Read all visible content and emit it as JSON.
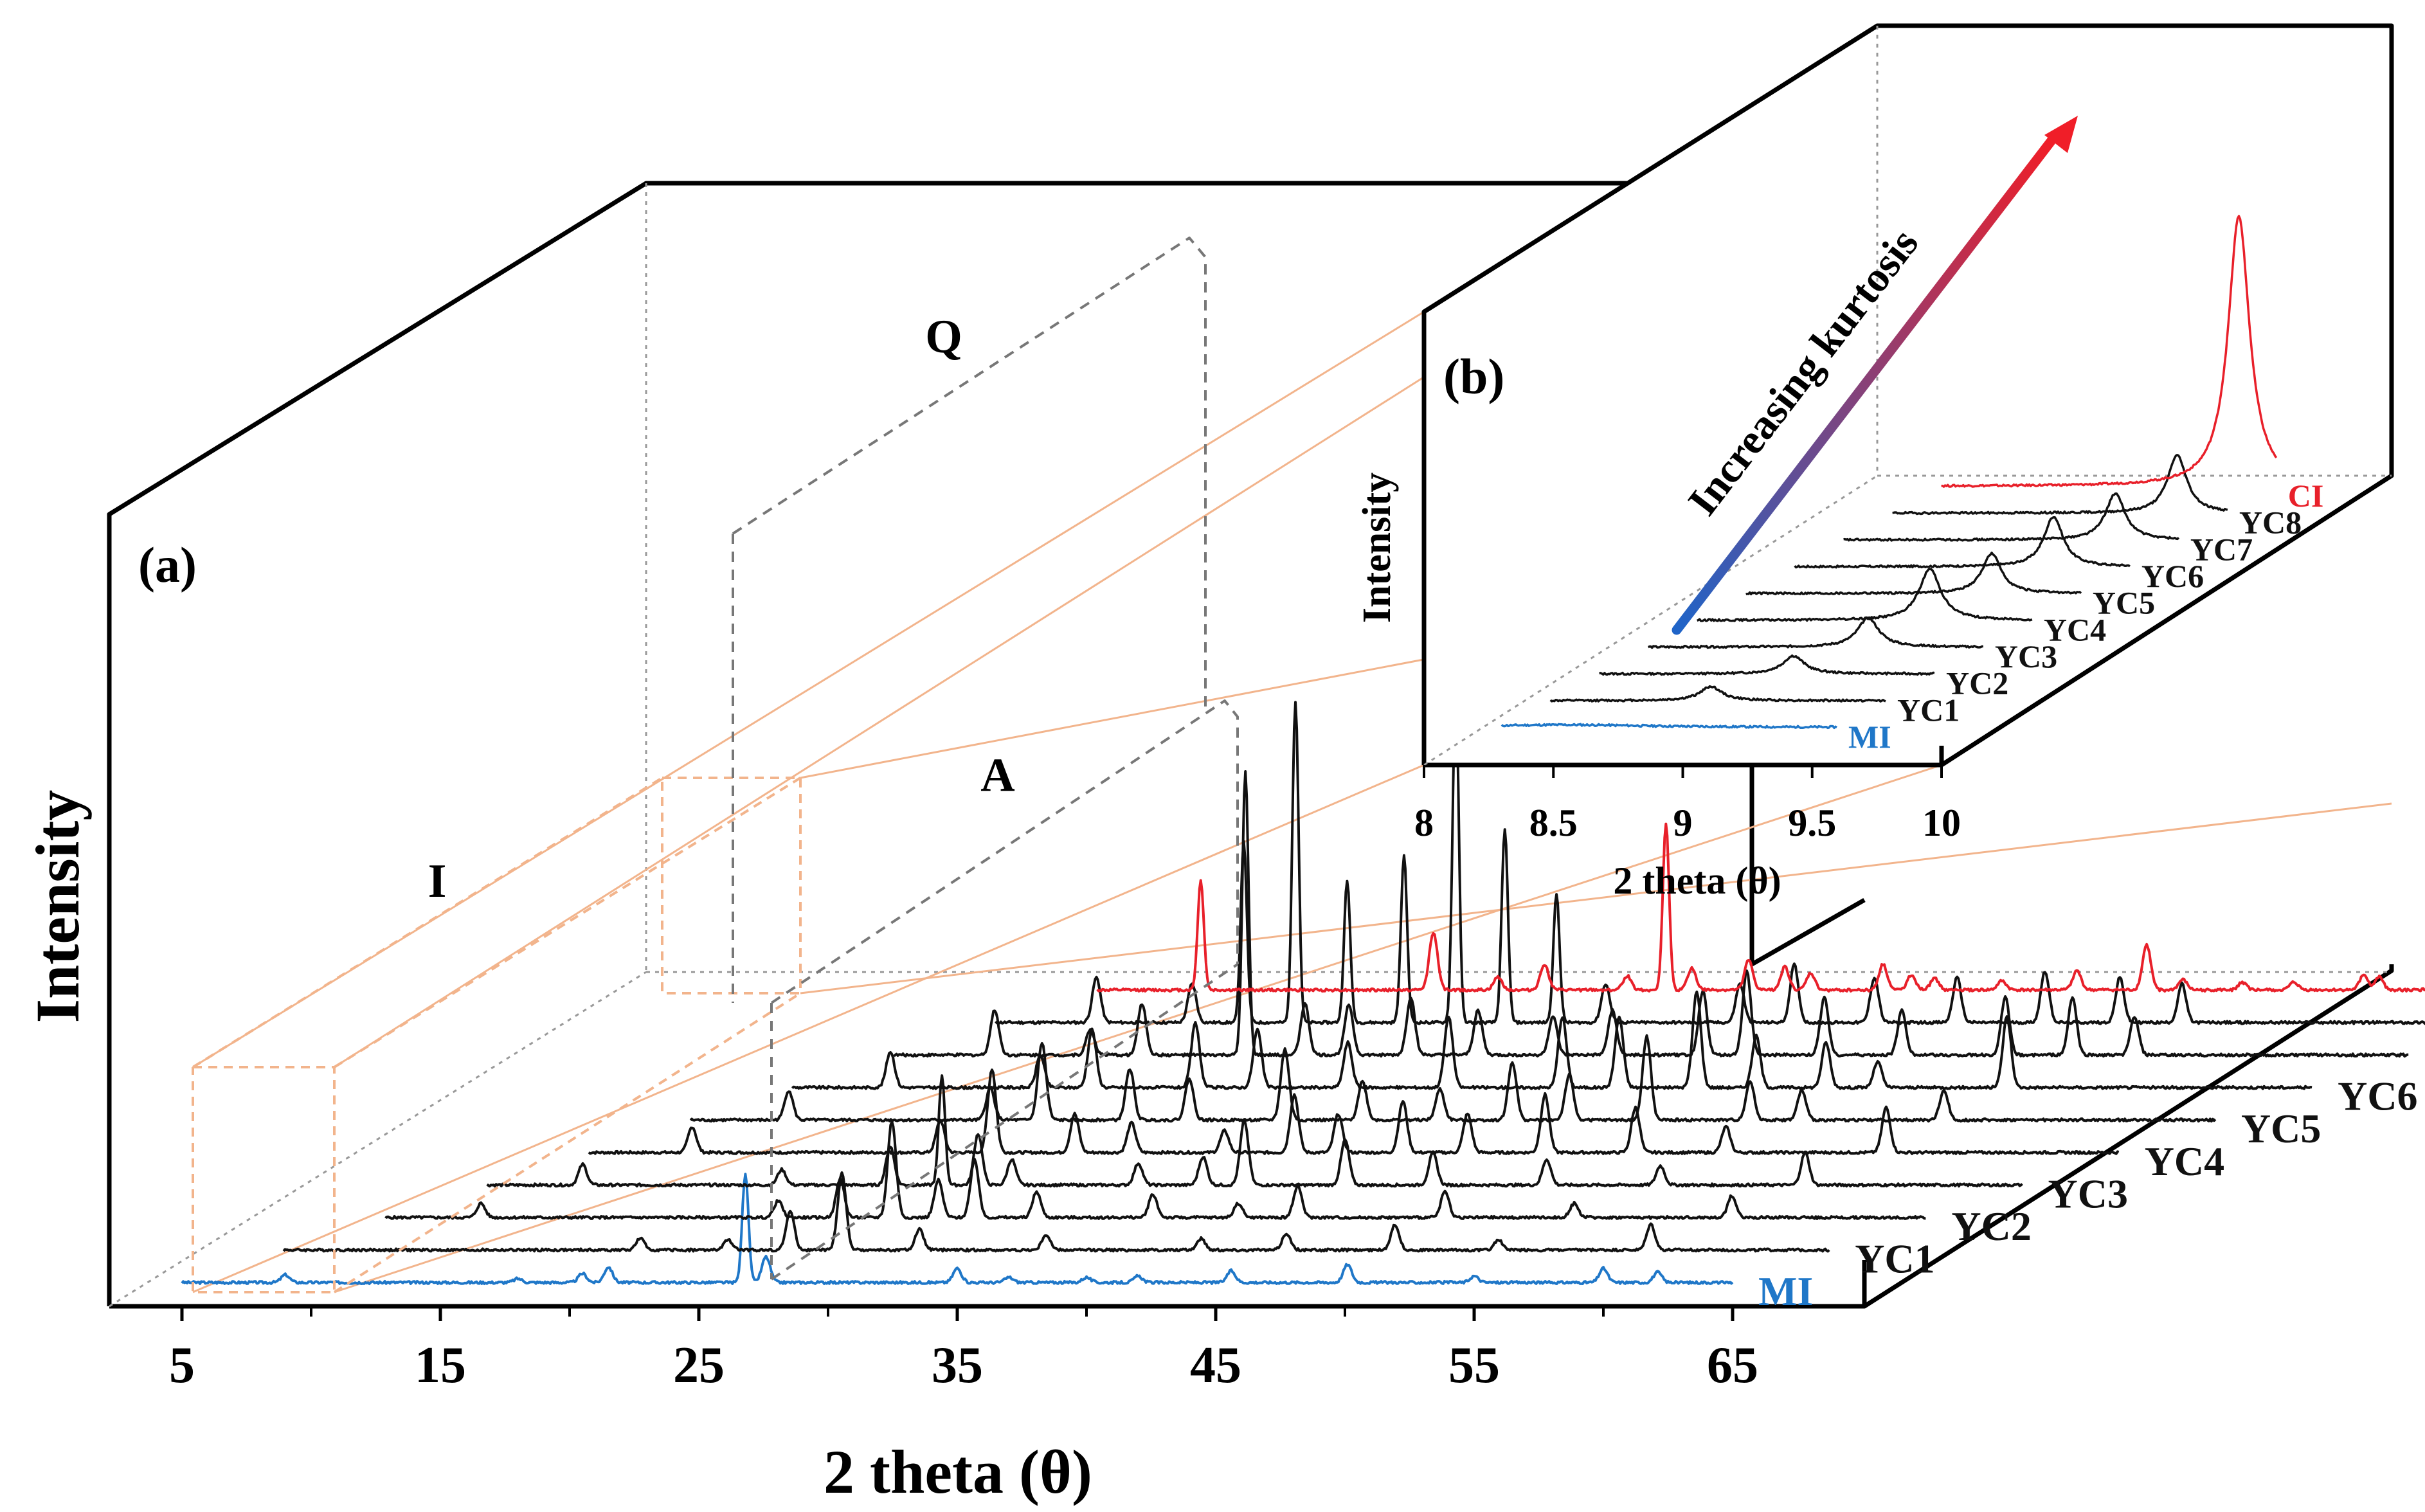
{
  "colors": {
    "red": "#e8202a",
    "blue": "#1f77c8",
    "black": "#111111",
    "guide": "#f2b48c",
    "dash": "#777777",
    "frame": "#000000"
  },
  "chart_data": [
    {
      "panel": "(a)",
      "type": "line",
      "xlabel": "2 theta (θ)",
      "ylabel": "Intensity",
      "xlim": [
        5,
        65
      ],
      "xticks": [
        "5",
        "15",
        "25",
        "35",
        "45",
        "55",
        "65"
      ],
      "region_labels": [
        "I",
        "Q",
        "A"
      ],
      "series": [
        {
          "name": "MI",
          "color": "#1f77c8",
          "peaks": [
            [
              9.0,
              12
            ],
            [
              18.0,
              6
            ],
            [
              20.5,
              14
            ],
            [
              21.5,
              24
            ],
            [
              26.8,
              170
            ],
            [
              27.6,
              40
            ],
            [
              35.0,
              22
            ],
            [
              37.0,
              8
            ],
            [
              40.0,
              8
            ],
            [
              42.0,
              10
            ],
            [
              45.6,
              18
            ],
            [
              50.1,
              28
            ],
            [
              55.0,
              10
            ],
            [
              60.0,
              22
            ],
            [
              62.1,
              16
            ]
          ]
        },
        {
          "name": "YC1",
          "color": "#111111",
          "peaks": [
            [
              20.8,
              18
            ],
            [
              24.2,
              16
            ],
            [
              26.6,
              60
            ],
            [
              28.6,
              120
            ],
            [
              31.6,
              32
            ],
            [
              36.5,
              24
            ],
            [
              42.5,
              18
            ],
            [
              45.8,
              26
            ],
            [
              50.0,
              40
            ],
            [
              54.0,
              16
            ],
            [
              59.9,
              40
            ],
            [
              68.0,
              18
            ]
          ]
        },
        {
          "name": "YC2",
          "color": "#111111",
          "peaks": [
            [
              12.7,
              22
            ],
            [
              24.2,
              26
            ],
            [
              26.6,
              60
            ],
            [
              28.6,
              150
            ],
            [
              30.4,
              58
            ],
            [
              31.8,
              90
            ],
            [
              34.2,
              40
            ],
            [
              38.7,
              36
            ],
            [
              42.0,
              22
            ],
            [
              44.3,
              50
            ],
            [
              50.0,
              40
            ],
            [
              55.0,
              22
            ],
            [
              61.1,
              34
            ]
          ]
        },
        {
          "name": "YC3",
          "color": "#111111",
          "peaks": [
            [
              14.7,
              32
            ],
            [
              22.4,
              24
            ],
            [
              26.6,
              60
            ],
            [
              28.6,
              170
            ],
            [
              30.0,
              80
            ],
            [
              31.3,
              40
            ],
            [
              36.2,
              34
            ],
            [
              38.7,
              44
            ],
            [
              40.3,
              100
            ],
            [
              44.2,
              70
            ],
            [
              47.6,
              50
            ],
            [
              52.0,
              40
            ],
            [
              56.4,
              30
            ],
            [
              62.0,
              50
            ]
          ]
        },
        {
          "name": "YC4",
          "color": "#111111",
          "peaks": [
            [
              17.0,
              40
            ],
            [
              26.6,
              50
            ],
            [
              28.6,
              130
            ],
            [
              31.8,
              60
            ],
            [
              34.0,
              46
            ],
            [
              37.6,
              34
            ],
            [
              40.3,
              90
            ],
            [
              42.0,
              60
            ],
            [
              44.5,
              80
            ],
            [
              47.0,
              60
            ],
            [
              50.0,
              90
            ],
            [
              53.5,
              70
            ],
            [
              57.0,
              40
            ],
            [
              63.2,
              70
            ]
          ]
        },
        {
          "name": "YC5",
          "color": "#111111",
          "peaks": [
            [
              18.8,
              46
            ],
            [
              26.6,
              50
            ],
            [
              28.6,
              120
            ],
            [
              32.0,
              80
            ],
            [
              34.3,
              64
            ],
            [
              38.0,
              110
            ],
            [
              41.0,
              60
            ],
            [
              44.0,
              48
            ],
            [
              46.8,
              90
            ],
            [
              49.0,
              70
            ],
            [
              52.0,
              130
            ],
            [
              56.0,
              60
            ],
            [
              58.0,
              46
            ],
            [
              63.5,
              46
            ]
          ]
        },
        {
          "name": "YC6",
          "color": "#111111",
          "peaks": [
            [
              20.8,
              56
            ],
            [
              26.6,
              50
            ],
            [
              28.6,
              90
            ],
            [
              32.6,
              100
            ],
            [
              35.0,
              90
            ],
            [
              38.5,
              70
            ],
            [
              42.4,
              110
            ],
            [
              46.8,
              110
            ],
            [
              49.0,
              110
            ],
            [
              52.0,
              150
            ],
            [
              54.3,
              80
            ],
            [
              57.0,
              70
            ],
            [
              59.0,
              40
            ],
            [
              64.0,
              110
            ]
          ]
        },
        {
          "name": "YC7",
          "color": "#111111",
          "peaks": [
            [
              22.9,
              70
            ],
            [
              26.6,
              40
            ],
            [
              28.6,
              80
            ],
            [
              32.6,
              440
            ],
            [
              34.9,
              80
            ],
            [
              36.6,
              80
            ],
            [
              39.0,
              90
            ],
            [
              41.6,
              70
            ],
            [
              44.5,
              60
            ],
            [
              46.8,
              70
            ],
            [
              50.3,
              100
            ],
            [
              52.0,
              130
            ],
            [
              55.0,
              90
            ],
            [
              58.0,
              70
            ],
            [
              62.0,
              90
            ],
            [
              64.6,
              90
            ],
            [
              67.0,
              60
            ]
          ]
        },
        {
          "name": "YC8",
          "color": "#111111",
          "peaks": [
            [
              24.9,
              70
            ],
            [
              28.6,
              60
            ],
            [
              30.6,
              280
            ],
            [
              32.6,
              500
            ],
            [
              34.6,
              220
            ],
            [
              36.8,
              260
            ],
            [
              38.8,
              520
            ],
            [
              40.7,
              300
            ],
            [
              42.7,
              200
            ],
            [
              44.6,
              60
            ],
            [
              49.8,
              60
            ],
            [
              51.9,
              90
            ],
            [
              55.0,
              70
            ],
            [
              58.2,
              70
            ],
            [
              61.6,
              80
            ],
            [
              64.5,
              70
            ],
            [
              66.9,
              60
            ]
          ]
        },
        {
          "name": "CI",
          "color": "#e8202a",
          "peaks": [
            [
              27.0,
              170
            ],
            [
              36.0,
              90
            ],
            [
              38.5,
              20
            ],
            [
              40.3,
              40
            ],
            [
              43.5,
              22
            ],
            [
              45.0,
              260
            ],
            [
              46.0,
              34
            ],
            [
              48.2,
              46
            ],
            [
              49.6,
              36
            ],
            [
              50.6,
              26
            ],
            [
              53.4,
              40
            ],
            [
              54.5,
              24
            ],
            [
              55.4,
              18
            ],
            [
              58.0,
              14
            ],
            [
              60.9,
              30
            ],
            [
              63.6,
              70
            ],
            [
              65.0,
              16
            ],
            [
              67.3,
              12
            ],
            [
              69.3,
              12
            ],
            [
              72.0,
              24
            ],
            [
              72.6,
              20
            ],
            [
              74.7,
              14
            ],
            [
              76.0,
              14
            ],
            [
              77.3,
              22
            ],
            [
              78.6,
              16
            ]
          ]
        }
      ]
    },
    {
      "panel": "(b)",
      "type": "line",
      "xlabel": "2 theta (θ)",
      "ylabel": "Intensity",
      "xlim": [
        8,
        10
      ],
      "xticks": [
        "8",
        "8.5",
        "9",
        "9.5",
        "10"
      ],
      "annotation": "Increasing kurtosis",
      "series": [
        {
          "name": "MI",
          "color": "#1f77c8",
          "peak_x": 9.0,
          "peak_height": 4,
          "width": 0.4
        },
        {
          "name": "YC1",
          "color": "#111111",
          "peak_x": 9.37,
          "peak_height": 22,
          "width": 0.05
        },
        {
          "name": "YC2",
          "color": "#111111",
          "peak_x": 9.5,
          "peak_height": 28,
          "width": 0.05
        },
        {
          "name": "YC3",
          "color": "#111111",
          "peak_x": 9.6,
          "peak_height": 45,
          "width": 0.05
        },
        {
          "name": "YC4",
          "color": "#111111",
          "peak_x": 9.65,
          "peak_height": 80,
          "width": 0.05
        },
        {
          "name": "YC5",
          "color": "#111111",
          "peak_x": 9.7,
          "peak_height": 62,
          "width": 0.045
        },
        {
          "name": "YC6",
          "color": "#111111",
          "peak_x": 9.75,
          "peak_height": 78,
          "width": 0.045
        },
        {
          "name": "YC7",
          "color": "#111111",
          "peak_x": 9.8,
          "peak_height": 72,
          "width": 0.045
        },
        {
          "name": "YC8",
          "color": "#111111",
          "peak_x": 9.85,
          "peak_height": 90,
          "width": 0.045
        },
        {
          "name": "CI",
          "color": "#e8202a",
          "peak_x": 9.9,
          "peak_height": 420,
          "width": 0.05
        }
      ]
    }
  ]
}
